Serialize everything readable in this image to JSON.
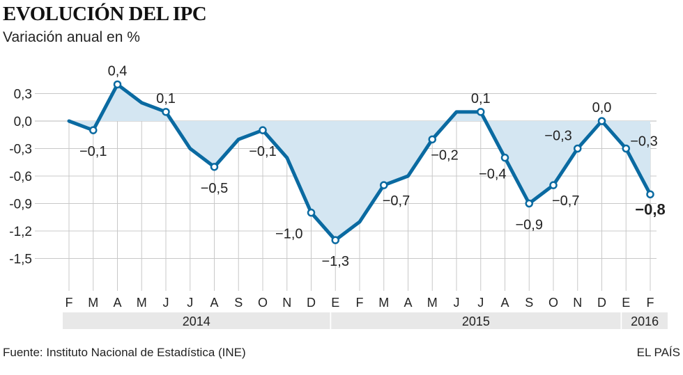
{
  "header": {
    "title": "EVOLUCIÓN DEL IPC",
    "subtitle": "Variación anual en %"
  },
  "footer": {
    "source": "Fuente: Instituto Nacional de Estadística (INE)",
    "brand": "EL PAÍS"
  },
  "colors": {
    "line": "#0a6aa1",
    "fill": "#d4e6f2",
    "grid": "#c8c8c8",
    "year_band": "#e8e8e8",
    "text": "#222222"
  },
  "chart_data": {
    "type": "area",
    "title": "EVOLUCIÓN DEL IPC",
    "subtitle": "Variación anual en %",
    "ylim": [
      -1.8,
      0.5
    ],
    "yticks": [
      "0,3",
      "0,0",
      "-0,3",
      "-0,6",
      "-0,9",
      "-1,2",
      "-1,5"
    ],
    "ytick_values": [
      0.3,
      0.0,
      -0.3,
      -0.6,
      -0.9,
      -1.2,
      -1.5
    ],
    "x": [
      "F",
      "M",
      "A",
      "M",
      "J",
      "J",
      "A",
      "S",
      "O",
      "N",
      "D",
      "E",
      "F",
      "M",
      "A",
      "M",
      "J",
      "J",
      "A",
      "S",
      "O",
      "N",
      "D",
      "E",
      "F"
    ],
    "years": [
      {
        "label": "2014",
        "start": 0,
        "end": 10
      },
      {
        "label": "2015",
        "start": 11,
        "end": 22
      },
      {
        "label": "2016",
        "start": 23,
        "end": 24
      }
    ],
    "series": [
      {
        "values": [
          0.0,
          -0.1,
          0.4,
          0.2,
          0.1,
          -0.3,
          -0.5,
          -0.2,
          -0.1,
          -0.4,
          -1.0,
          -1.3,
          -1.1,
          -0.7,
          -0.6,
          -0.2,
          0.1,
          0.1,
          -0.4,
          -0.9,
          -0.7,
          -0.3,
          0.0,
          -0.3,
          -0.8
        ]
      }
    ],
    "labels": [
      {
        "i": 1,
        "text": "−0,1",
        "pos": "below"
      },
      {
        "i": 2,
        "text": "0,4",
        "pos": "above"
      },
      {
        "i": 4,
        "text": "0,1",
        "pos": "above"
      },
      {
        "i": 6,
        "text": "−0,5",
        "pos": "below"
      },
      {
        "i": 8,
        "text": "−0,1",
        "pos": "below"
      },
      {
        "i": 10,
        "text": "−1,0",
        "pos": "left"
      },
      {
        "i": 11,
        "text": "−1,3",
        "pos": "below"
      },
      {
        "i": 13,
        "text": "−0,7",
        "pos": "right"
      },
      {
        "i": 15,
        "text": "−0,2",
        "pos": "right"
      },
      {
        "i": 17,
        "text": "0,1",
        "pos": "above"
      },
      {
        "i": 18,
        "text": "−0,4",
        "pos": "left"
      },
      {
        "i": 19,
        "text": "−0,9",
        "pos": "below"
      },
      {
        "i": 20,
        "text": "−0,7",
        "pos": "right"
      },
      {
        "i": 21,
        "text": "−0,3",
        "pos": "left"
      },
      {
        "i": 22,
        "text": "0,0",
        "pos": "above"
      },
      {
        "i": 23,
        "text": "−0,3",
        "pos": "right"
      },
      {
        "i": 24,
        "text": "−0,8",
        "pos": "below-bold"
      }
    ]
  }
}
